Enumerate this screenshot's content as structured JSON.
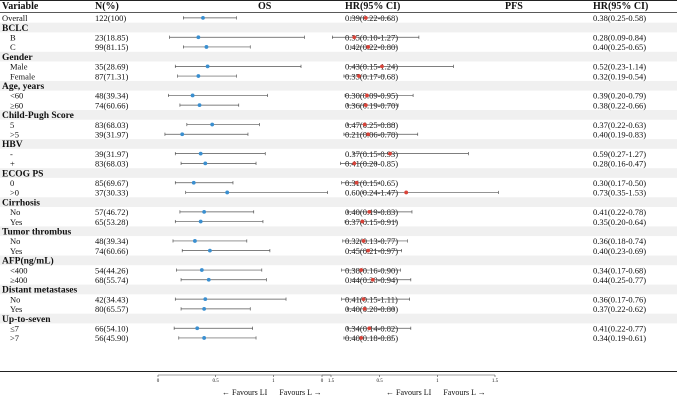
{
  "chart_data": {
    "type": "forest",
    "headers": {
      "variable": "Variable",
      "n": "N(%)",
      "os": "OS",
      "hr_os": "HR(95% CI)",
      "pfs": "PFS",
      "hr_pfs": "HR(95% CI)"
    },
    "xaxis": {
      "ticks": [
        "0",
        "0.5",
        "1",
        "1.5"
      ],
      "xlim": [
        0,
        1.5
      ],
      "favours_left": "← Favours LI",
      "favours_right": "Favours L →"
    },
    "colors": {
      "os_point": "#3a8fd0",
      "pfs_point": "#d9443a",
      "line": "#555555",
      "band": "#f0f0f0"
    },
    "rows": [
      {
        "kind": "item",
        "label": "Overall",
        "n": "122(100)",
        "os": [
          0.39,
          0.22,
          0.68
        ],
        "os_text": "0.39(0.22-0.68)",
        "pfs": [
          0.38,
          0.25,
          0.58
        ],
        "pfs_text": "0.38(0.25-0.58)"
      },
      {
        "kind": "group",
        "label": "BCLC"
      },
      {
        "kind": "item",
        "label": "B",
        "n": "23(18.85)",
        "os": [
          0.35,
          0.1,
          1.27
        ],
        "os_text": "0.35(0.10-1.27)",
        "pfs": [
          0.28,
          0.09,
          0.84
        ],
        "pfs_text": "0.28(0.09-0.84)"
      },
      {
        "kind": "item",
        "label": "C",
        "n": "99(81.15)",
        "os": [
          0.42,
          0.22,
          0.8
        ],
        "os_text": "0.42(0.22-0.80)",
        "pfs": [
          0.4,
          0.25,
          0.65
        ],
        "pfs_text": "0.40(0.25-0.65)"
      },
      {
        "kind": "group",
        "label": "Gender"
      },
      {
        "kind": "item",
        "label": "Male",
        "n": "35(28.69)",
        "os": [
          0.43,
          0.15,
          1.24
        ],
        "os_text": "0.43(0.15-1.24)",
        "pfs": [
          0.52,
          0.23,
          1.14
        ],
        "pfs_text": "0.52(0.23-1.14)"
      },
      {
        "kind": "item",
        "label": "Female",
        "n": "87(71.31)",
        "os": [
          0.35,
          0.17,
          0.68
        ],
        "os_text": "0.35(0.17-0.68)",
        "pfs": [
          0.32,
          0.19,
          0.54
        ],
        "pfs_text": "0.32(0.19-0.54)"
      },
      {
        "kind": "group",
        "label": "Age, years"
      },
      {
        "kind": "item",
        "label": "<60",
        "n": "48(39.34)",
        "os": [
          0.3,
          0.09,
          0.95
        ],
        "os_text": "0.30(0.09-0.95)",
        "pfs": [
          0.39,
          0.2,
          0.79
        ],
        "pfs_text": "0.39(0.20-0.79)"
      },
      {
        "kind": "item",
        "label": "≥60",
        "n": "74(60.66)",
        "os": [
          0.36,
          0.19,
          0.7
        ],
        "os_text": "0.36(0.19-0.70)",
        "pfs": [
          0.38,
          0.22,
          0.66
        ],
        "pfs_text": "0.38(0.22-0.66)"
      },
      {
        "kind": "group",
        "label": "Child-Pugh Score"
      },
      {
        "kind": "item",
        "label": "5",
        "n": "83(68.03)",
        "os": [
          0.47,
          0.25,
          0.88
        ],
        "os_text": "0.47(0.25-0.88)",
        "pfs": [
          0.37,
          0.22,
          0.63
        ],
        "pfs_text": "0.37(0.22-0.63)"
      },
      {
        "kind": "item",
        "label": ">5",
        "n": "39(31.97)",
        "os": [
          0.21,
          0.06,
          0.78
        ],
        "os_text": "0.21(0.06-0.78)",
        "pfs": [
          0.4,
          0.19,
          0.83
        ],
        "pfs_text": "0.40(0.19-0.83)"
      },
      {
        "kind": "group",
        "label": "HBV"
      },
      {
        "kind": "item",
        "label": "-",
        "n": "39(31.97)",
        "os": [
          0.37,
          0.15,
          0.93
        ],
        "os_text": "0.37(0.15-0.93)",
        "pfs": [
          0.59,
          0.27,
          1.27
        ],
        "pfs_text": "0.59(0.27-1.27)"
      },
      {
        "kind": "item",
        "label": "+",
        "n": "83(68.03)",
        "os": [
          0.41,
          0.2,
          0.85
        ],
        "os_text": "0.41(0.20-0.85)",
        "pfs": [
          0.28,
          0.16,
          0.47
        ],
        "pfs_text": "0.28(0.16-0.47)"
      },
      {
        "kind": "group",
        "label": "ECOG PS"
      },
      {
        "kind": "item",
        "label": "0",
        "n": "85(69.67)",
        "os": [
          0.31,
          0.15,
          0.65
        ],
        "os_text": "0.31(0.15-0.65)",
        "pfs": [
          0.3,
          0.17,
          0.5
        ],
        "pfs_text": "0.30(0.17-0.50)"
      },
      {
        "kind": "item",
        "label": ">0",
        "n": "37(30.33)",
        "os": [
          0.6,
          0.24,
          1.47
        ],
        "os_text": "0.60(0.24-1.47)",
        "pfs": [
          0.73,
          0.35,
          1.53
        ],
        "pfs_text": "0.73(0.35-1.53)"
      },
      {
        "kind": "group",
        "label": "Cirrhosis"
      },
      {
        "kind": "item",
        "label": "No",
        "n": "57(46.72)",
        "os": [
          0.4,
          0.19,
          0.83
        ],
        "os_text": "0.40(0.19-0.83)",
        "pfs": [
          0.41,
          0.22,
          0.78
        ],
        "pfs_text": "0.41(0.22-0.78)"
      },
      {
        "kind": "item",
        "label": "Yes",
        "n": "65(53.28)",
        "os": [
          0.37,
          0.15,
          0.91
        ],
        "os_text": "0.37(0.15-0.91)",
        "pfs": [
          0.35,
          0.2,
          0.64
        ],
        "pfs_text": "0.35(0.20-0.64)"
      },
      {
        "kind": "group",
        "label": "Tumor thrombus"
      },
      {
        "kind": "item",
        "label": "No",
        "n": "48(39.34)",
        "os": [
          0.32,
          0.13,
          0.77
        ],
        "os_text": "0.32(0.13-0.77)",
        "pfs": [
          0.36,
          0.18,
          0.74
        ],
        "pfs_text": "0.36(0.18-0.74)"
      },
      {
        "kind": "item",
        "label": "Yes",
        "n": "74(60.66)",
        "os": [
          0.45,
          0.21,
          0.97
        ],
        "os_text": "0.45(0.21-0.97)",
        "pfs": [
          0.4,
          0.23,
          0.69
        ],
        "pfs_text": "0.40(0.23-0.69)"
      },
      {
        "kind": "group",
        "label": "AFP(ng/mL)"
      },
      {
        "kind": "item",
        "label": "<400",
        "n": "54(44.26)",
        "os": [
          0.38,
          0.16,
          0.9
        ],
        "os_text": "0.38(0.16-0.90)",
        "pfs": [
          0.34,
          0.17,
          0.68
        ],
        "pfs_text": "0.34(0.17-0.68)"
      },
      {
        "kind": "item",
        "label": "≥400",
        "n": "68(55.74)",
        "os": [
          0.44,
          0.2,
          0.94
        ],
        "os_text": "0.44(0.20-0.94)",
        "pfs": [
          0.44,
          0.25,
          0.77
        ],
        "pfs_text": "0.44(0.25-0.77)"
      },
      {
        "kind": "group",
        "label": "Distant metastases"
      },
      {
        "kind": "item",
        "label": "No",
        "n": "42(34.43)",
        "os": [
          0.41,
          0.15,
          1.11
        ],
        "os_text": "0.41(0.15-1.11)",
        "pfs": [
          0.36,
          0.17,
          0.76
        ],
        "pfs_text": "0.36(0.17-0.76)"
      },
      {
        "kind": "item",
        "label": "Yes",
        "n": "80(65.57)",
        "os": [
          0.4,
          0.2,
          0.8
        ],
        "os_text": "0.40(0.20-0.80)",
        "pfs": [
          0.37,
          0.22,
          0.62
        ],
        "pfs_text": "0.37(0.22-0.62)"
      },
      {
        "kind": "group",
        "label": "Up-to-seven"
      },
      {
        "kind": "item",
        "label": "≤7",
        "n": "66(54.10)",
        "os": [
          0.34,
          0.14,
          0.82
        ],
        "os_text": "0.34(0.14-0.82)",
        "pfs": [
          0.41,
          0.22,
          0.77
        ],
        "pfs_text": "0.41(0.22-0.77)"
      },
      {
        "kind": "item",
        "label": ">7",
        "n": "56(45.90)",
        "os": [
          0.4,
          0.18,
          0.85
        ],
        "os_text": "0.40(0.18-0.85)",
        "pfs": [
          0.34,
          0.19,
          0.61
        ],
        "pfs_text": "0.34(0.19-0.61)"
      }
    ]
  }
}
